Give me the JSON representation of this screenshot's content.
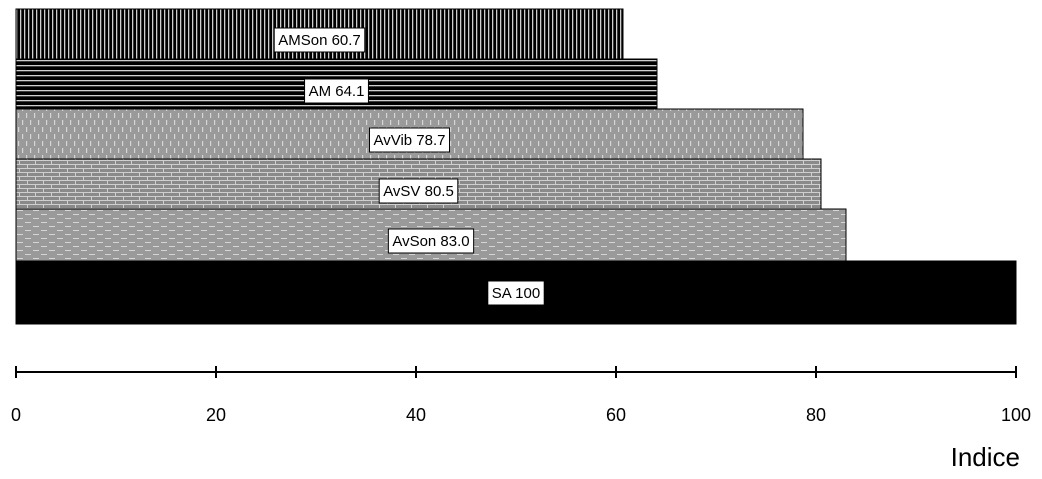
{
  "chart_data": {
    "type": "bar",
    "orientation": "horizontal",
    "xlabel": "Indice",
    "xlim": [
      0,
      100
    ],
    "x_ticks": [
      0,
      20,
      40,
      60,
      80,
      100
    ],
    "x_tick_labels": [
      "0",
      "20",
      "40",
      "60",
      "80",
      "100"
    ],
    "bars": [
      {
        "label": "AMSon 60.7",
        "category": "AMSon",
        "value": 60.7,
        "pattern": "vertical-stripes",
        "color": "#000000"
      },
      {
        "label": "AM 64.1",
        "category": "AM",
        "value": 64.1,
        "pattern": "horizontal-stripes",
        "color": "#000000"
      },
      {
        "label": "AvVib 78.7",
        "category": "AvVib",
        "value": 78.7,
        "pattern": "vertical-dashes",
        "color": "#9a9a9a"
      },
      {
        "label": "AvSV 80.5",
        "category": "AvSV",
        "value": 80.5,
        "pattern": "brick",
        "color": "#8f8f8f"
      },
      {
        "label": "AvSon 83.0",
        "category": "AvSon",
        "value": 83.0,
        "pattern": "horizontal-dashes",
        "color": "#9a9a9a"
      },
      {
        "label": "SA 100",
        "category": "SA",
        "value": 100,
        "pattern": "solid",
        "color": "#000000"
      }
    ]
  }
}
